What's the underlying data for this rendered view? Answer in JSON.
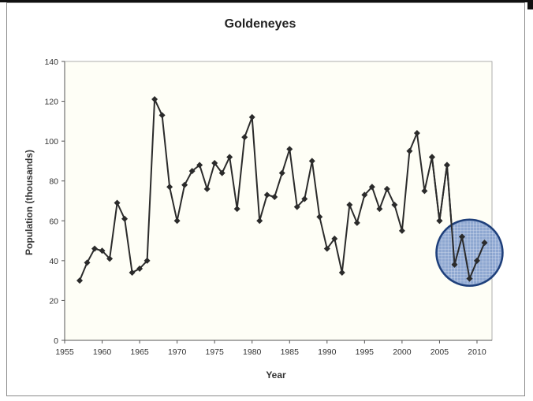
{
  "chart_data": {
    "type": "line",
    "title": "Goldeneyes",
    "xlabel": "Year",
    "ylabel": "Population (thousands)",
    "xlim": [
      1955,
      2012
    ],
    "ylim": [
      0,
      140
    ],
    "x_ticks": [
      1955,
      1960,
      1965,
      1970,
      1975,
      1980,
      1985,
      1990,
      1995,
      2000,
      2005,
      2010
    ],
    "y_ticks": [
      0,
      20,
      40,
      60,
      80,
      100,
      120,
      140
    ],
    "grid": false,
    "legend": "none",
    "colors": {
      "line": "#2b2b2b",
      "marker": "#2b2b2b",
      "plot_bg": "#fefef6",
      "highlight_fill": "#6f8fc6",
      "highlight_stroke": "#1e3f7a"
    },
    "annotations": [
      {
        "type": "highlight-circle",
        "x_center": 2009,
        "y_center": 44,
        "note": ""
      }
    ],
    "series": [
      {
        "x": [
          1957,
          1958,
          1959,
          1960,
          1961,
          1962,
          1963,
          1964,
          1965,
          1966,
          1967,
          1968,
          1969,
          1970,
          1971,
          1972,
          1973,
          1974,
          1975,
          1976,
          1977,
          1978,
          1979,
          1980,
          1981,
          1982,
          1983,
          1984,
          1985,
          1986,
          1987,
          1988,
          1989,
          1990,
          1991,
          1992,
          1993,
          1994,
          1995,
          1996,
          1997,
          1998,
          1999,
          2000,
          2001,
          2002,
          2003,
          2004,
          2005,
          2006,
          2007,
          2008,
          2009,
          2010,
          2011
        ],
        "values": [
          30,
          39,
          46,
          45,
          41,
          69,
          61,
          34,
          36,
          40,
          121,
          113,
          77,
          60,
          78,
          85,
          88,
          76,
          89,
          84,
          92,
          66,
          102,
          112,
          60,
          73,
          72,
          84,
          96,
          67,
          71,
          90,
          62,
          46,
          51,
          34,
          68,
          59,
          73,
          77,
          66,
          76,
          68,
          55,
          95,
          104,
          75,
          92,
          60,
          88,
          38,
          52,
          31,
          40,
          49
        ]
      }
    ]
  }
}
